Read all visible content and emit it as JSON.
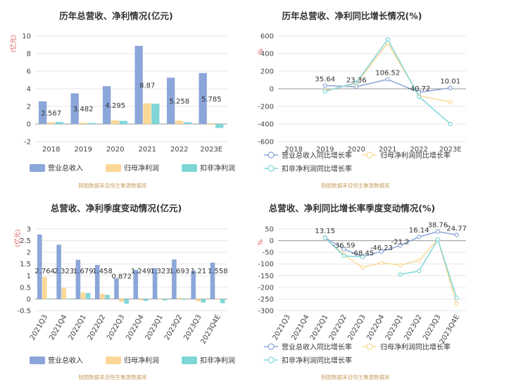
{
  "colors": {
    "revenue": "#8ba6d9",
    "netprofit": "#fbd897",
    "deducted": "#7fd6d7"
  },
  "chart_data": [
    {
      "type": "bar",
      "title": "历年总营收、净利情况(亿元)",
      "unit": "(亿元)",
      "categories": [
        "2018",
        "2019",
        "2020",
        "2021",
        "2022",
        "2023E"
      ],
      "ylim": [
        -2,
        10
      ],
      "yticks": [
        -2,
        0,
        2,
        4,
        6,
        8,
        10
      ],
      "series": [
        {
          "name": "营业总收入",
          "values": [
            2.567,
            3.482,
            4.295,
            8.87,
            5.258,
            5.785
          ],
          "labels": [
            "2.567",
            "3.482",
            "4.295",
            "8.87",
            "5.258",
            "5.785"
          ]
        },
        {
          "name": "归母净利润",
          "values": [
            0.2,
            0.15,
            0.42,
            2.35,
            0.38,
            -0.1
          ]
        },
        {
          "name": "扣非净利润",
          "values": [
            0.22,
            0.12,
            0.35,
            2.3,
            0.2,
            -0.45
          ]
        }
      ],
      "source": "制图数据来自恒生聚源数据库"
    },
    {
      "type": "line",
      "title": "历年总营收、净利同比增长情况(%)",
      "unit": "%",
      "categories": [
        "2018",
        "2019",
        "2020",
        "2021",
        "2022",
        "2023E"
      ],
      "ylim": [
        -600,
        600
      ],
      "yticks": [
        -600,
        -400,
        -200,
        0,
        200,
        400,
        600
      ],
      "series": [
        {
          "name": "营业总收入同比增长率",
          "values": [
            null,
            35.64,
            23.36,
            106.52,
            -40.72,
            10.01
          ],
          "labels": [
            "",
            "35.64",
            "23.36",
            "106.52",
            "-40.72",
            "10.01"
          ]
        },
        {
          "name": "归母净利润同比增长率",
          "values": [
            null,
            -20,
            60,
            520,
            -80,
            -150
          ]
        },
        {
          "name": "扣非净利润同比增长率",
          "values": [
            null,
            -30,
            70,
            560,
            -90,
            -400
          ]
        }
      ],
      "source": "制图数据来自恒生聚源数据库"
    },
    {
      "type": "bar",
      "title": "总营收、净利季度变动情况(亿元)",
      "unit": "(亿元)",
      "categories": [
        "2021Q3",
        "2021Q4",
        "2022Q1",
        "2022Q2",
        "2022Q3",
        "2022Q4",
        "2023Q1",
        "2023Q2",
        "2023Q3",
        "2023Q4E"
      ],
      "ylim": [
        -0.5,
        3
      ],
      "yticks": [
        -0.5,
        0,
        0.5,
        1,
        1.5,
        2,
        2.5,
        3
      ],
      "series": [
        {
          "name": "营业总收入",
          "values": [
            2.764,
            2.323,
            1.679,
            1.458,
            0.872,
            1.249,
            1.323,
            1.693,
            1.21,
            1.558
          ],
          "labels": [
            "2.764",
            "2.323",
            "1.679",
            "1.458",
            "0.872",
            "1.249",
            "1.323",
            "1.693",
            "1.21",
            "1.558"
          ]
        },
        {
          "name": "归母净利润",
          "values": [
            0.95,
            0.48,
            0.28,
            0.22,
            -0.12,
            -0.05,
            0.02,
            0.05,
            -0.1,
            -0.02
          ]
        },
        {
          "name": "扣非净利润",
          "values": [
            0.02,
            0.01,
            0.26,
            0.18,
            -0.2,
            -0.08,
            -0.06,
            -0.03,
            -0.15,
            -0.18
          ]
        }
      ],
      "source": "制图数据来自恒生聚源数据库"
    },
    {
      "type": "line",
      "title": "总营收、净利同比增长率季度变动情况(%)",
      "unit": "%",
      "categories": [
        "2021Q3",
        "2021Q4",
        "2022Q1",
        "2022Q2",
        "2022Q3",
        "2022Q4",
        "2023Q1",
        "2023Q2",
        "2023Q3",
        "2023Q4E"
      ],
      "ylim": [
        -300,
        50
      ],
      "yticks": [
        -300,
        -250,
        -200,
        -150,
        -100,
        -50,
        0,
        50
      ],
      "series": [
        {
          "name": "营业总收入同比增长率",
          "values": [
            null,
            null,
            13.15,
            -36.59,
            -68.45,
            -46.23,
            -21.2,
            16.14,
            38.76,
            24.77
          ],
          "labels": [
            "",
            "",
            "13.15",
            "-36.59",
            "-68.45",
            "-46.23",
            "-21.2",
            "16.14",
            "38.76",
            "24.77"
          ]
        },
        {
          "name": "归母净利润同比增长率",
          "values": [
            null,
            null,
            10,
            -60,
            -115,
            -95,
            -105,
            -85,
            5,
            -270
          ]
        },
        {
          "name": "扣非净利润同比增长率",
          "values": [
            null,
            null,
            12,
            -65,
            -70,
            null,
            -145,
            -130,
            5,
            -245
          ]
        }
      ],
      "source": "制图数据来自恒生聚源数据库"
    }
  ]
}
